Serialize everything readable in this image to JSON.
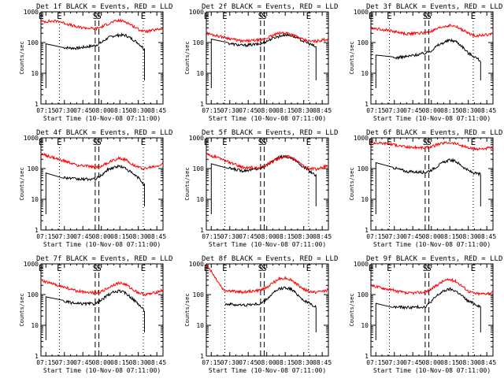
{
  "figure": {
    "xlabel": "Start Time (10-Nov-08 07:11:00)",
    "ylabel": "Counts/sec",
    "x_tick_labels": [
      "07:15",
      "07:30",
      "07:45",
      "08:00",
      "08:15",
      "08:30",
      "08:45"
    ],
    "y_tick_labels": [
      "1",
      "10",
      "100",
      "1000"
    ],
    "markers": [
      {
        "label": "E",
        "time": "07:11",
        "style": "dotted"
      },
      {
        "label": "E",
        "time": "07:26",
        "style": "dotted"
      },
      {
        "label": "S",
        "time": "07:55",
        "style": "dashed"
      },
      {
        "label": "S",
        "time": "07:58",
        "style": "dashed"
      },
      {
        "label": "E",
        "time": "08:34",
        "style": "dotted"
      }
    ],
    "colors": {
      "events": "#000000",
      "lld": "#ff0000"
    }
  },
  "chart_data": [
    {
      "type": "line",
      "title": "Det 1f BLACK = Events, RED = LLD",
      "ylim": [
        1,
        1000
      ],
      "y_scale": "log",
      "xlim": [
        "07:11",
        "08:50"
      ],
      "series": [
        {
          "color": "#000000",
          "x": [
            "07:11",
            "07:25",
            "07:40",
            "07:55",
            "08:00",
            "08:05",
            "08:10",
            "08:15",
            "08:20",
            "08:25",
            "08:30",
            "08:35"
          ],
          "values": [
            0,
            70,
            65,
            80,
            100,
            140,
            165,
            175,
            170,
            130,
            95,
            60
          ]
        },
        {
          "color": "#ff0000",
          "x": [
            "07:11",
            "07:25",
            "07:40",
            "07:55",
            "08:00",
            "08:05",
            "08:10",
            "08:15",
            "08:20",
            "08:25",
            "08:30",
            "08:35",
            "08:40",
            "08:45",
            "08:50"
          ],
          "values": [
            480,
            500,
            320,
            280,
            320,
            400,
            480,
            520,
            470,
            360,
            270,
            230,
            240,
            260,
            290
          ]
        }
      ]
    },
    {
      "type": "line",
      "title": "Det 2f BLACK = Events, RED = LLD",
      "ylim": [
        1,
        1000
      ],
      "y_scale": "log",
      "xlim": [
        "07:11",
        "08:50"
      ],
      "series": [
        {
          "color": "#000000",
          "x": [
            "07:11",
            "07:25",
            "07:40",
            "07:55",
            "08:00",
            "08:05",
            "08:10",
            "08:15",
            "08:20",
            "08:25",
            "08:30",
            "08:35",
            "08:40"
          ],
          "values": [
            0,
            100,
            80,
            90,
            110,
            140,
            160,
            180,
            170,
            140,
            110,
            90,
            70
          ]
        },
        {
          "color": "#ff0000",
          "x": [
            "07:11",
            "07:25",
            "07:40",
            "07:55",
            "08:00",
            "08:05",
            "08:10",
            "08:15",
            "08:20",
            "08:25",
            "08:30",
            "08:35",
            "08:40",
            "08:45",
            "08:50"
          ],
          "values": [
            200,
            150,
            110,
            120,
            140,
            170,
            200,
            210,
            190,
            150,
            120,
            110,
            110,
            120,
            130
          ]
        }
      ]
    },
    {
      "type": "line",
      "title": "Det 3f BLACK = Events, RED = LLD",
      "ylim": [
        1,
        1000
      ],
      "y_scale": "log",
      "xlim": [
        "07:11",
        "08:50"
      ],
      "series": [
        {
          "color": "#000000",
          "x": [
            "07:11",
            "07:25",
            "07:40",
            "07:55",
            "08:00",
            "08:05",
            "08:10",
            "08:15",
            "08:20",
            "08:25",
            "08:30",
            "08:35",
            "08:40"
          ],
          "values": [
            0,
            30,
            35,
            45,
            55,
            80,
            100,
            120,
            110,
            75,
            45,
            35,
            25
          ]
        },
        {
          "color": "#ff0000",
          "x": [
            "07:11",
            "07:25",
            "07:40",
            "07:55",
            "08:00",
            "08:05",
            "08:10",
            "08:15",
            "08:20",
            "08:25",
            "08:30",
            "08:35",
            "08:40",
            "08:45",
            "08:50"
          ],
          "values": [
            300,
            250,
            190,
            210,
            230,
            280,
            330,
            360,
            330,
            260,
            200,
            170,
            170,
            180,
            190
          ]
        }
      ]
    },
    {
      "type": "line",
      "title": "Det 4f BLACK = Events, RED = LLD",
      "ylim": [
        1,
        1000
      ],
      "y_scale": "log",
      "xlim": [
        "07:11",
        "08:50"
      ],
      "series": [
        {
          "color": "#000000",
          "x": [
            "07:11",
            "07:25",
            "07:40",
            "07:55",
            "08:00",
            "08:05",
            "08:10",
            "08:15",
            "08:20",
            "08:25",
            "08:30",
            "08:35"
          ],
          "values": [
            0,
            55,
            45,
            45,
            60,
            90,
            110,
            120,
            100,
            70,
            50,
            30
          ]
        },
        {
          "color": "#ff0000",
          "x": [
            "07:11",
            "07:25",
            "07:40",
            "07:55",
            "08:00",
            "08:05",
            "08:10",
            "08:15",
            "08:20",
            "08:25",
            "08:30",
            "08:35",
            "08:40",
            "08:45",
            "08:50"
          ],
          "values": [
            300,
            200,
            130,
            110,
            120,
            150,
            190,
            220,
            190,
            140,
            110,
            100,
            110,
            120,
            140
          ]
        }
      ]
    },
    {
      "type": "line",
      "title": "Det 5f BLACK = Events, RED = LLD",
      "ylim": [
        1,
        1000
      ],
      "y_scale": "log",
      "xlim": [
        "07:11",
        "08:50"
      ],
      "series": [
        {
          "color": "#000000",
          "x": [
            "07:11",
            "07:25",
            "07:40",
            "07:55",
            "08:00",
            "08:05",
            "08:10",
            "08:15",
            "08:20",
            "08:25",
            "08:30",
            "08:35",
            "08:40"
          ],
          "values": [
            0,
            110,
            85,
            100,
            130,
            180,
            230,
            250,
            220,
            160,
            110,
            80,
            60
          ]
        },
        {
          "color": "#ff0000",
          "x": [
            "07:11",
            "07:25",
            "07:40",
            "07:55",
            "08:00",
            "08:05",
            "08:10",
            "08:15",
            "08:20",
            "08:25",
            "08:30",
            "08:35",
            "08:40",
            "08:45",
            "08:50"
          ],
          "values": [
            300,
            190,
            110,
            105,
            130,
            170,
            220,
            250,
            230,
            170,
            120,
            100,
            95,
            105,
            130
          ]
        }
      ]
    },
    {
      "type": "line",
      "title": "Det 6f BLACK = Events, RED = LLD",
      "ylim": [
        1,
        1000
      ],
      "y_scale": "log",
      "xlim": [
        "07:11",
        "08:50"
      ],
      "series": [
        {
          "color": "#000000",
          "x": [
            "07:11",
            "07:25",
            "07:40",
            "07:55",
            "08:00",
            "08:05",
            "08:10",
            "08:15",
            "08:20",
            "08:25",
            "08:30",
            "08:35",
            "08:40"
          ],
          "values": [
            0,
            120,
            80,
            75,
            90,
            120,
            160,
            190,
            170,
            120,
            85,
            70,
            65
          ]
        },
        {
          "color": "#ff0000",
          "x": [
            "07:11",
            "07:25",
            "07:40",
            "07:55",
            "08:00",
            "08:05",
            "08:10",
            "08:15",
            "08:20",
            "08:25",
            "08:30",
            "08:35",
            "08:40",
            "08:45",
            "08:50"
          ],
          "values": [
            700,
            650,
            500,
            470,
            520,
            600,
            680,
            700,
            650,
            550,
            470,
            430,
            440,
            460,
            480
          ]
        }
      ]
    },
    {
      "type": "line",
      "title": "Det 7f BLACK = Events, RED = LLD",
      "ylim": [
        1,
        1000
      ],
      "y_scale": "log",
      "xlim": [
        "07:11",
        "08:50"
      ],
      "series": [
        {
          "color": "#000000",
          "x": [
            "07:11",
            "07:25",
            "07:40",
            "07:55",
            "08:00",
            "08:05",
            "08:10",
            "08:15",
            "08:20",
            "08:25",
            "08:30",
            "08:35"
          ],
          "values": [
            0,
            65,
            50,
            50,
            65,
            95,
            120,
            130,
            110,
            75,
            50,
            30
          ]
        },
        {
          "color": "#ff0000",
          "x": [
            "07:11",
            "07:25",
            "07:40",
            "07:55",
            "08:00",
            "08:05",
            "08:10",
            "08:15",
            "08:20",
            "08:25",
            "08:30",
            "08:35",
            "08:40",
            "08:45",
            "08:50"
          ],
          "values": [
            280,
            200,
            130,
            115,
            125,
            160,
            210,
            240,
            210,
            150,
            115,
            100,
            105,
            120,
            140
          ]
        }
      ]
    },
    {
      "type": "line",
      "title": "Det 8f BLACK = Events, RED = LLD",
      "ylim": [
        1,
        1000
      ],
      "y_scale": "log",
      "xlim": [
        "07:11",
        "08:50"
      ],
      "series": [
        {
          "color": "#000000",
          "x": [
            "07:26",
            "07:40",
            "07:55",
            "08:00",
            "08:05",
            "08:10",
            "08:15",
            "08:20",
            "08:25",
            "08:30",
            "08:35",
            "08:40"
          ],
          "values": [
            50,
            45,
            50,
            70,
            110,
            150,
            170,
            150,
            100,
            65,
            50,
            40
          ]
        },
        {
          "color": "#ff0000",
          "x": [
            "07:11",
            "07:25",
            "07:40",
            "07:55",
            "08:00",
            "08:05",
            "08:10",
            "08:15",
            "08:20",
            "08:25",
            "08:30",
            "08:35",
            "08:40",
            "08:45",
            "08:50"
          ],
          "values": [
            1000,
            140,
            120,
            140,
            170,
            240,
            320,
            350,
            300,
            210,
            150,
            125,
            120,
            130,
            140
          ]
        }
      ]
    },
    {
      "type": "line",
      "title": "Det 9f BLACK = Events, RED = LLD",
      "ylim": [
        1,
        1000
      ],
      "y_scale": "log",
      "xlim": [
        "07:11",
        "08:50"
      ],
      "series": [
        {
          "color": "#000000",
          "x": [
            "07:11",
            "07:25",
            "07:40",
            "07:55",
            "08:00",
            "08:05",
            "08:10",
            "08:15",
            "08:20",
            "08:25",
            "08:30",
            "08:35",
            "08:40"
          ],
          "values": [
            0,
            40,
            38,
            40,
            60,
            95,
            130,
            150,
            130,
            90,
            60,
            50,
            40
          ]
        },
        {
          "color": "#ff0000",
          "x": [
            "07:11",
            "07:25",
            "07:40",
            "07:55",
            "08:00",
            "08:05",
            "08:10",
            "08:15",
            "08:20",
            "08:25",
            "08:30",
            "08:35",
            "08:40",
            "08:45",
            "08:50"
          ],
          "values": [
            200,
            150,
            110,
            120,
            150,
            210,
            280,
            310,
            270,
            190,
            130,
            110,
            105,
            110,
            120
          ]
        }
      ]
    }
  ]
}
